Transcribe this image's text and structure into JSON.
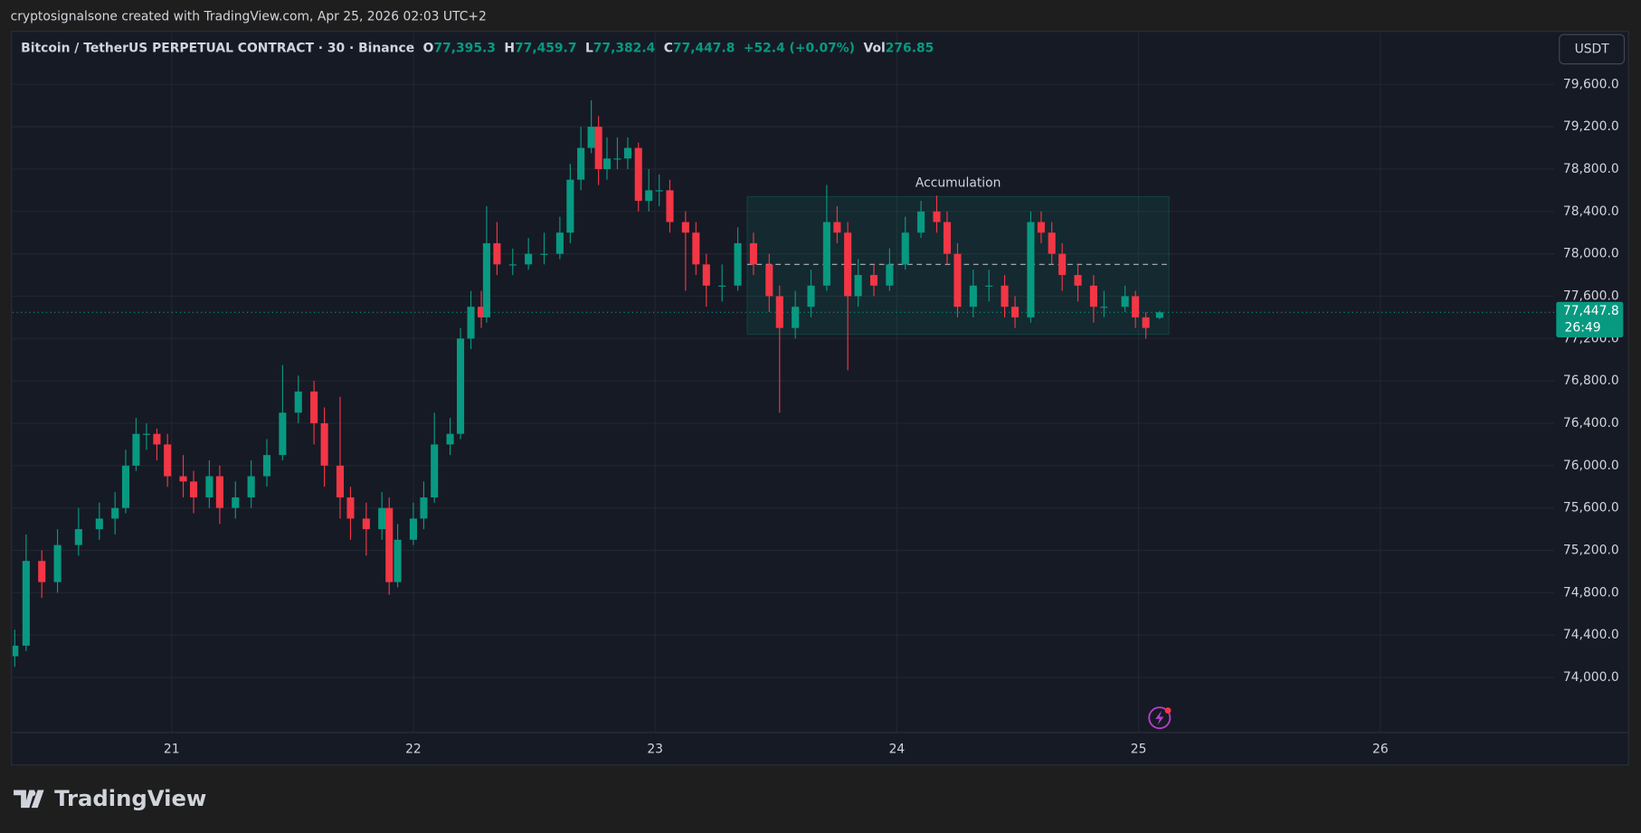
{
  "header": {
    "caption": "cryptosignalsone created with TradingView.com, Apr 25, 2026 02:03 UTC+2",
    "brand": "TradingView",
    "currency_button": "USDT"
  },
  "legend": {
    "symbol": "Bitcoin / TetherUS PERPETUAL CONTRACT · 30 · Binance",
    "fields": [
      {
        "label": "O",
        "value": "77,395.3"
      },
      {
        "label": "H",
        "value": "77,459.7"
      },
      {
        "label": "L",
        "value": "77,382.4"
      },
      {
        "label": "C",
        "value": "77,447.8"
      }
    ],
    "change": "+52.4 (+0.07%)",
    "volume": {
      "label": "Vol",
      "value": "276.85"
    }
  },
  "chart_data": {
    "type": "candlestick",
    "up_color": "#089981",
    "down_color": "#f23645",
    "grid": true,
    "xlim": [
      20.342,
      26.719
    ],
    "xticks": [
      21,
      22,
      23,
      24,
      25,
      26
    ],
    "ylim": [
      73480,
      80090
    ],
    "yticks": [
      {
        "value": 74000,
        "label": "74,000.0"
      },
      {
        "value": 74400,
        "label": "74,400.0"
      },
      {
        "value": 74800,
        "label": "74,800.0"
      },
      {
        "value": 75200,
        "label": "75,200.0"
      },
      {
        "value": 75600,
        "label": "75,600.0"
      },
      {
        "value": 76000,
        "label": "76,000.0"
      },
      {
        "value": 76400,
        "label": "76,400.0"
      },
      {
        "value": 76800,
        "label": "76,800.0"
      },
      {
        "value": 77200,
        "label": "77,200.0"
      },
      {
        "value": 77600,
        "label": "77,600.0"
      },
      {
        "value": 78000,
        "label": "78,000.0"
      },
      {
        "value": 78400,
        "label": "78,400.0"
      },
      {
        "value": 78800,
        "label": "78,800.0"
      },
      {
        "value": 79200,
        "label": "79,200.0"
      },
      {
        "value": 79600,
        "label": "79,600.0"
      }
    ],
    "x": [
      20.351,
      20.398,
      20.463,
      20.528,
      20.615,
      20.701,
      20.766,
      20.81,
      20.853,
      20.896,
      20.939,
      20.983,
      21.048,
      21.091,
      21.156,
      21.199,
      21.264,
      21.329,
      21.394,
      21.459,
      21.524,
      21.589,
      21.632,
      21.697,
      21.74,
      21.805,
      21.87,
      21.9,
      21.935,
      22.0,
      22.043,
      22.087,
      22.152,
      22.195,
      22.238,
      22.281,
      22.303,
      22.346,
      22.411,
      22.476,
      22.541,
      22.606,
      22.649,
      22.693,
      22.736,
      22.766,
      22.801,
      22.844,
      22.887,
      22.931,
      22.974,
      23.017,
      23.061,
      23.126,
      23.169,
      23.212,
      23.277,
      23.342,
      23.407,
      23.472,
      23.515,
      23.58,
      23.645,
      23.71,
      23.753,
      23.797,
      23.84,
      23.905,
      23.97,
      24.035,
      24.1,
      24.165,
      24.208,
      24.251,
      24.316,
      24.381,
      24.446,
      24.489,
      24.554,
      24.597,
      24.641,
      24.684,
      24.749,
      24.814,
      24.857,
      24.944,
      24.987,
      25.03,
      25.087
    ],
    "open": [
      74200,
      74300,
      75100,
      74900,
      75250,
      75400,
      75500,
      75600,
      76000,
      76300,
      76300,
      76200,
      75900,
      75850,
      75700,
      75900,
      75600,
      75700,
      75900,
      76100,
      76500,
      76700,
      76400,
      76000,
      75700,
      75500,
      75400,
      75600,
      74900,
      75300,
      75500,
      75700,
      76200,
      76300,
      77200,
      77500,
      77400,
      78100,
      77900,
      77900,
      78000,
      78000,
      78200,
      78700,
      79000,
      79200,
      78800,
      78900,
      78900,
      79000,
      78500,
      78600,
      78600,
      78300,
      78200,
      77900,
      77700,
      77700,
      78100,
      77900,
      77600,
      77300,
      77500,
      77700,
      78300,
      78200,
      77600,
      77800,
      77700,
      77900,
      78200,
      78400,
      78300,
      78000,
      77500,
      77700,
      77700,
      77500,
      77400,
      78300,
      78200,
      78000,
      77800,
      77700,
      77500,
      77500,
      77600,
      77400,
      77395.3
    ],
    "high": [
      74450,
      75350,
      75200,
      75400,
      75600,
      75650,
      75750,
      76150,
      76450,
      76400,
      76350,
      76300,
      76100,
      75950,
      76050,
      76000,
      75850,
      76050,
      76250,
      76950,
      76850,
      76800,
      76550,
      76650,
      75800,
      75650,
      75750,
      75700,
      75450,
      75650,
      75850,
      76500,
      76450,
      77300,
      77650,
      77650,
      78450,
      78300,
      78050,
      78150,
      78200,
      78350,
      78850,
      79200,
      79450,
      79300,
      79100,
      79100,
      79100,
      79050,
      78800,
      78750,
      78700,
      78400,
      78300,
      78000,
      77900,
      78250,
      78200,
      78000,
      77700,
      77650,
      77850,
      78650,
      78450,
      78300,
      77950,
      77900,
      78050,
      78350,
      78500,
      78550,
      78400,
      78100,
      77850,
      77850,
      77800,
      77600,
      78400,
      78400,
      78300,
      78100,
      77900,
      77800,
      77650,
      77700,
      77650,
      77450,
      77459.7
    ],
    "low": [
      74100,
      74250,
      74750,
      74800,
      75150,
      75300,
      75350,
      75550,
      75950,
      76150,
      76050,
      75800,
      75700,
      75550,
      75600,
      75450,
      75500,
      75600,
      75800,
      76050,
      76400,
      76200,
      75800,
      75500,
      75300,
      75150,
      75300,
      74780,
      74850,
      75250,
      75400,
      75650,
      76100,
      76250,
      77100,
      77300,
      77350,
      77800,
      77800,
      77850,
      77900,
      77950,
      78100,
      78600,
      78950,
      78650,
      78700,
      78800,
      78800,
      78400,
      78400,
      78450,
      78200,
      77650,
      77800,
      77500,
      77550,
      77650,
      77800,
      77450,
      76500,
      77200,
      77400,
      77650,
      78100,
      76900,
      77500,
      77600,
      77650,
      77850,
      78150,
      78200,
      77900,
      77400,
      77400,
      77550,
      77400,
      77300,
      77350,
      78100,
      77900,
      77650,
      77550,
      77350,
      77400,
      77450,
      77300,
      77200,
      77382.4
    ],
    "close": [
      74300,
      75100,
      74900,
      75250,
      75400,
      75500,
      75600,
      76000,
      76300,
      76300,
      76200,
      75900,
      75850,
      75700,
      75900,
      75600,
      75700,
      75900,
      76100,
      76500,
      76700,
      76400,
      76000,
      75700,
      75500,
      75400,
      75600,
      74900,
      75300,
      75500,
      75700,
      76200,
      76300,
      77200,
      77500,
      77400,
      78100,
      77900,
      77900,
      78000,
      78000,
      78200,
      78700,
      79000,
      79200,
      78800,
      78900,
      78900,
      79000,
      78500,
      78600,
      78600,
      78300,
      78200,
      77900,
      77700,
      77700,
      78100,
      77900,
      77600,
      77300,
      77500,
      77700,
      78300,
      78200,
      77600,
      77800,
      77700,
      77900,
      78200,
      78400,
      78300,
      78000,
      77500,
      77700,
      77700,
      77500,
      77400,
      78300,
      78200,
      78000,
      77800,
      77700,
      77500,
      77500,
      77600,
      77400,
      77300,
      77447.8
    ],
    "zone": {
      "label": "Accumulation",
      "x": [
        23.381,
        25.126
      ],
      "price": [
        77240,
        78540
      ],
      "mid": 77900,
      "color": "#089981"
    },
    "last_price": {
      "value": 77447.8,
      "label": "77,447.8"
    },
    "countdown": "26:49"
  }
}
